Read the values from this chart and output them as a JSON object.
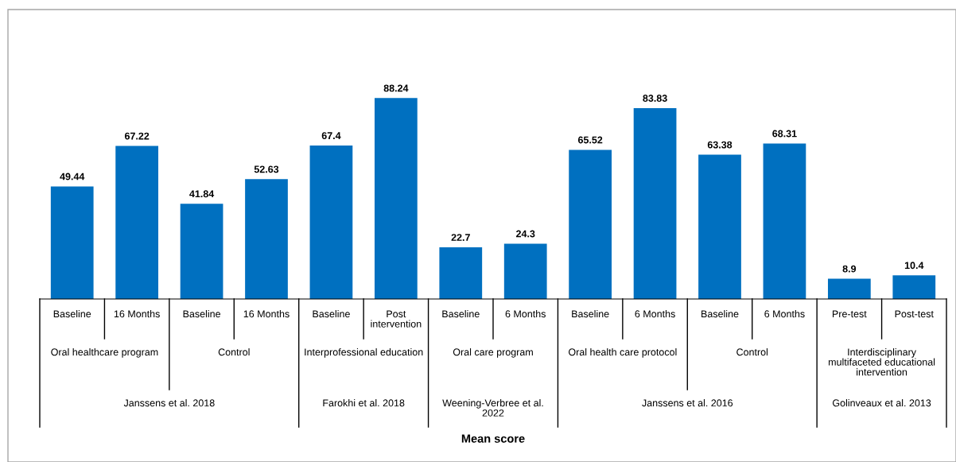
{
  "chart_data": {
    "type": "bar",
    "categories": [
      "Baseline",
      "16 Months",
      "Baseline",
      "16 Months",
      "Baseline",
      "Post intervention",
      "Baseline",
      "6 Months",
      "Baseline",
      "6 Months",
      "Baseline",
      "6 Months",
      "Pre-test",
      "Post-test"
    ],
    "series": [
      {
        "color": "#0070c0",
        "values": [
          49.44,
          67.22,
          41.84,
          52.63,
          67.4,
          88.24,
          22.7,
          24.3,
          65.52,
          83.83,
          63.38,
          68.31,
          8.9,
          10.4
        ]
      }
    ],
    "data_labels": true,
    "legend": false,
    "annotations": [
      "Oral healthcare program",
      "Control",
      "Interprofessional education",
      "Oral care program",
      "Oral health care protocol",
      "Control",
      "Interdisciplinary multifaceted educational intervention",
      "Janssens et al. 2018",
      "Farokhi et al. 2018",
      "Weening-Verbree et al. 2022",
      "Janssens et al. 2016",
      "Golinveaux et al. 2013",
      "Mean score"
    ]
  }
}
